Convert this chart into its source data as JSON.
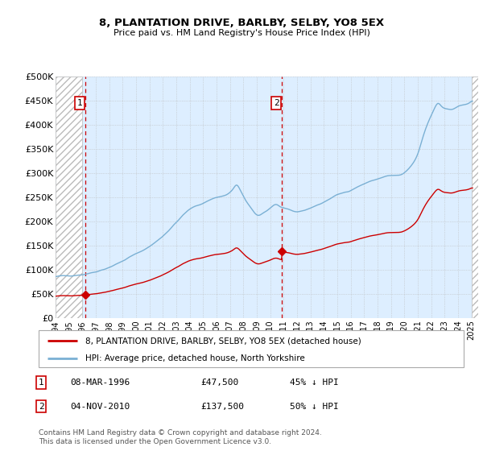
{
  "title": "8, PLANTATION DRIVE, BARLBY, SELBY, YO8 5EX",
  "subtitle": "Price paid vs. HM Land Registry's House Price Index (HPI)",
  "bg_color": "#ddeeff",
  "hpi_color": "#7ab0d4",
  "price_color": "#cc0000",
  "ylim": [
    0,
    500000
  ],
  "yticks": [
    0,
    50000,
    100000,
    150000,
    200000,
    250000,
    300000,
    350000,
    400000,
    450000,
    500000
  ],
  "ytick_labels": [
    "£0",
    "£50K",
    "£100K",
    "£150K",
    "£200K",
    "£250K",
    "£300K",
    "£350K",
    "£400K",
    "£450K",
    "£500K"
  ],
  "xlim_start": 1994.0,
  "xlim_end": 2025.5,
  "xticks": [
    1994,
    1995,
    1996,
    1997,
    1998,
    1999,
    2000,
    2001,
    2002,
    2003,
    2004,
    2005,
    2006,
    2007,
    2008,
    2009,
    2010,
    2011,
    2012,
    2013,
    2014,
    2015,
    2016,
    2017,
    2018,
    2019,
    2020,
    2021,
    2022,
    2023,
    2024,
    2025
  ],
  "sale1_x": 1996.19,
  "sale1_y": 47500,
  "sale1_label": "1",
  "sale2_x": 2010.84,
  "sale2_y": 137500,
  "sale2_label": "2",
  "legend_price_label": "8, PLANTATION DRIVE, BARLBY, SELBY, YO8 5EX (detached house)",
  "legend_hpi_label": "HPI: Average price, detached house, North Yorkshire",
  "footnote": "Contains HM Land Registry data © Crown copyright and database right 2024.\nThis data is licensed under the Open Government Licence v3.0."
}
